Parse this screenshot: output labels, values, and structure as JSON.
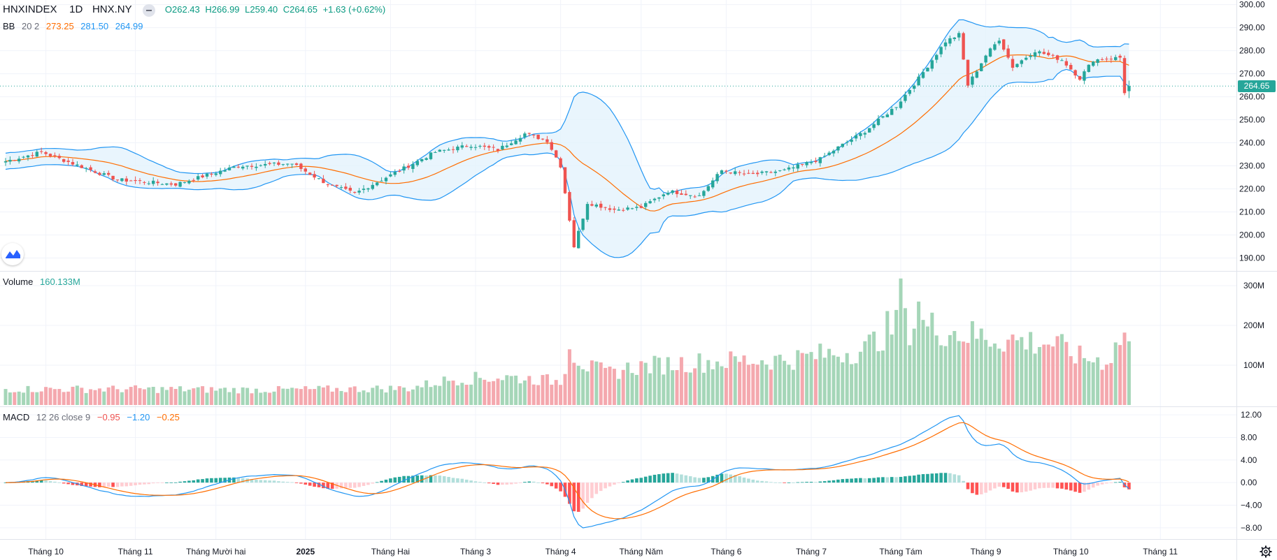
{
  "header": {
    "symbol": "HNXINDEX",
    "interval": "1D",
    "exchange": "HNX.NY",
    "open": "O262.43",
    "high": "H266.99",
    "low": "L259.40",
    "close": "C264.65",
    "change": "+1.63 (+0.62%)"
  },
  "legends": {
    "bb": {
      "name": "BB",
      "params": "20 2",
      "basis": "273.25",
      "upper": "281.50",
      "lower": "264.99"
    },
    "volume": {
      "name": "Volume",
      "value": "160.133M"
    },
    "macd": {
      "name": "MACD",
      "params": "12 26 close 9",
      "hist": "−0.95",
      "macd": "−1.20",
      "signal": "−0.25"
    }
  },
  "last_price_label": "264.65",
  "colors": {
    "up": "#26a69a",
    "down": "#ef5350",
    "vol_up": "#a5d6b8",
    "vol_down": "#f4a8ae",
    "bb_band": "#2196f3",
    "bb_basis": "#ff6d00",
    "bb_fill": "#e3f2fd",
    "macd_line": "#2196f3",
    "signal_line": "#ff6d00",
    "hist_up_strong": "#26a69a",
    "hist_up_weak": "#b2dfdb",
    "hist_down_strong": "#ff5252",
    "hist_down_weak": "#ffcdd2",
    "grid": "#f0f3fa",
    "axis_text": "#131722"
  },
  "chart_data": [
    {
      "type": "candlestick",
      "pane": "price",
      "title": "HNXINDEX 1D HNX.NY",
      "y_ticks": [
        190,
        200,
        210,
        220,
        230,
        240,
        250,
        260,
        270,
        280,
        290,
        300
      ],
      "y_tick_labels": [
        "190.00",
        "200.00",
        "210.00",
        "220.00",
        "230.00",
        "240.00",
        "250.00",
        "260.00",
        "270.00",
        "280.00",
        "290.00",
        "300.00"
      ],
      "ylim": [
        185,
        302
      ],
      "x_tick_labels": [
        "Tháng 10",
        "Tháng 11",
        "Tháng Mười hai",
        "2025",
        "Tháng Hai",
        "Tháng 3",
        "Tháng 4",
        "Tháng Năm",
        "Tháng 6",
        "Tháng 7",
        "Tháng Tám",
        "Tháng 9",
        "Tháng 10",
        "Tháng 11"
      ],
      "x_tick_bar_index": [
        9,
        29,
        47,
        67,
        86,
        105,
        124,
        142,
        161,
        180,
        200,
        219,
        238,
        258
      ],
      "n_bars": 252,
      "close_anchors": [
        [
          0,
          232
        ],
        [
          8,
          236
        ],
        [
          15,
          231
        ],
        [
          25,
          224
        ],
        [
          38,
          222
        ],
        [
          52,
          230
        ],
        [
          64,
          231
        ],
        [
          72,
          222
        ],
        [
          78,
          218
        ],
        [
          86,
          226
        ],
        [
          96,
          236
        ],
        [
          104,
          239
        ],
        [
          110,
          237
        ],
        [
          116,
          244
        ],
        [
          121,
          241
        ],
        [
          124,
          230
        ],
        [
          127,
          195
        ],
        [
          130,
          214
        ],
        [
          136,
          211
        ],
        [
          142,
          212
        ],
        [
          148,
          219
        ],
        [
          155,
          217
        ],
        [
          160,
          228
        ],
        [
          166,
          226
        ],
        [
          174,
          228
        ],
        [
          182,
          233
        ],
        [
          186,
          238
        ],
        [
          192,
          245
        ],
        [
          199,
          256
        ],
        [
          204,
          268
        ],
        [
          210,
          284
        ],
        [
          213,
          287
        ],
        [
          215,
          265
        ],
        [
          219,
          278
        ],
        [
          222,
          285
        ],
        [
          225,
          273
        ],
        [
          230,
          280
        ],
        [
          236,
          276
        ],
        [
          240,
          268
        ],
        [
          243,
          276
        ],
        [
          249,
          277
        ],
        [
          250,
          262
        ],
        [
          251,
          264.65
        ]
      ],
      "last": {
        "open": 262.43,
        "high": 266.99,
        "low": 259.4,
        "close": 264.65
      }
    },
    {
      "type": "line",
      "pane": "price",
      "name": "BB 20 2",
      "series": [
        {
          "name": "basis",
          "last": 273.25
        },
        {
          "name": "upper",
          "last": 281.5
        },
        {
          "name": "lower",
          "last": 264.99
        }
      ]
    },
    {
      "type": "bar",
      "pane": "volume",
      "name": "Volume",
      "y_ticks": [
        100,
        200,
        300
      ],
      "y_tick_labels": [
        "100M",
        "200M",
        "300M"
      ],
      "ylim": [
        0,
        330
      ],
      "last_value_millions": 160.133,
      "level_anchors": [
        [
          0,
          40
        ],
        [
          30,
          40
        ],
        [
          60,
          38
        ],
        [
          90,
          42
        ],
        [
          100,
          65
        ],
        [
          112,
          70
        ],
        [
          124,
          60
        ],
        [
          126,
          140
        ],
        [
          130,
          95
        ],
        [
          135,
          80
        ],
        [
          140,
          95
        ],
        [
          150,
          105
        ],
        [
          160,
          110
        ],
        [
          175,
          115
        ],
        [
          185,
          130
        ],
        [
          192,
          140
        ],
        [
          197,
          190
        ],
        [
          200,
          200
        ],
        [
          204,
          200
        ],
        [
          210,
          190
        ],
        [
          216,
          175
        ],
        [
          220,
          170
        ],
        [
          228,
          160
        ],
        [
          234,
          155
        ],
        [
          240,
          120
        ],
        [
          246,
          110
        ],
        [
          250,
          180
        ],
        [
          251,
          160
        ]
      ]
    },
    {
      "type": "line",
      "pane": "macd",
      "name": "MACD 12 26 close 9",
      "y_ticks": [
        -8,
        -4,
        0,
        4,
        8,
        12
      ],
      "y_tick_labels": [
        "−8.00",
        "−4.00",
        "0.00",
        "4.00",
        "8.00",
        "12.00"
      ],
      "ylim": [
        -9.5,
        13
      ],
      "series": [
        {
          "name": "MACD",
          "last": -1.2
        },
        {
          "name": "Signal",
          "last": -0.25
        },
        {
          "name": "Histogram",
          "last": -0.95
        }
      ]
    }
  ]
}
